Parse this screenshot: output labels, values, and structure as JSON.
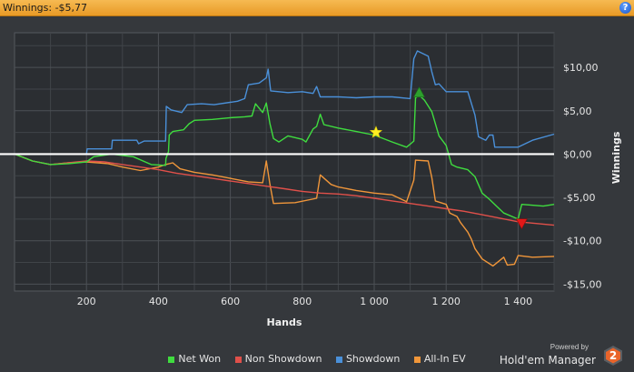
{
  "window": {
    "title": "Winnings: -$5,77",
    "help_label": "?"
  },
  "branding": {
    "powered_by": "Powered by",
    "product": "Hold'em Manager",
    "version_badge": "2"
  },
  "colors": {
    "net_won": "#3fdc3f",
    "non_showdown": "#e0504a",
    "showdown": "#4a90d9",
    "all_in_ev": "#f0963a",
    "zero_line": "#ffffff"
  },
  "chart_data": {
    "type": "line",
    "title": "",
    "xlabel": "Hands",
    "ylabel": "Winnings",
    "xlim": [
      0,
      1500
    ],
    "ylim": [
      -15.8,
      14
    ],
    "x_ticks": [
      200,
      400,
      600,
      800,
      1000,
      1200,
      1400
    ],
    "x_tick_labels": [
      "200",
      "400",
      "600",
      "800",
      "1 000",
      "1 200",
      "1 400"
    ],
    "y_ticks": [
      10,
      5,
      0,
      -5,
      -10,
      -15
    ],
    "y_tick_labels": [
      "$10,00",
      "$5,00",
      "$0,00",
      "-$5,00",
      "-$10,00",
      "-$15,00"
    ],
    "y_axis_side": "right",
    "grid": true,
    "legend_position": "bottom",
    "series": [
      {
        "name": "Net Won",
        "color": "#3fdc3f",
        "points": [
          [
            0,
            0
          ],
          [
            50,
            -0.8
          ],
          [
            100,
            -1.2
          ],
          [
            150,
            -1.1
          ],
          [
            200,
            -0.9
          ],
          [
            220,
            -0.3
          ],
          [
            270,
            0
          ],
          [
            330,
            -0.3
          ],
          [
            380,
            -1.2
          ],
          [
            420,
            -1.3
          ],
          [
            421,
            -0.5
          ],
          [
            428,
            0.3
          ],
          [
            430,
            2.2
          ],
          [
            440,
            2.6
          ],
          [
            470,
            2.8
          ],
          [
            485,
            3.5
          ],
          [
            500,
            3.9
          ],
          [
            550,
            4
          ],
          [
            600,
            4.2
          ],
          [
            640,
            4.3
          ],
          [
            660,
            4.4
          ],
          [
            670,
            5.8
          ],
          [
            690,
            4.8
          ],
          [
            700,
            5.9
          ],
          [
            710,
            3.5
          ],
          [
            720,
            1.8
          ],
          [
            735,
            1.4
          ],
          [
            760,
            2.1
          ],
          [
            800,
            1.7
          ],
          [
            810,
            1.4
          ],
          [
            830,
            2.9
          ],
          [
            840,
            3.2
          ],
          [
            850,
            4.6
          ],
          [
            860,
            3.4
          ],
          [
            900,
            3
          ],
          [
            950,
            2.6
          ],
          [
            1000,
            2.2
          ],
          [
            1050,
            1.4
          ],
          [
            1090,
            0.8
          ],
          [
            1110,
            1.5
          ],
          [
            1115,
            6.5
          ],
          [
            1125,
            6.8
          ],
          [
            1140,
            6.2
          ],
          [
            1160,
            4.9
          ],
          [
            1180,
            2.1
          ],
          [
            1200,
            1
          ],
          [
            1215,
            -1.2
          ],
          [
            1230,
            -1.5
          ],
          [
            1260,
            -1.8
          ],
          [
            1280,
            -2.6
          ],
          [
            1300,
            -4.5
          ],
          [
            1320,
            -5.2
          ],
          [
            1340,
            -6
          ],
          [
            1360,
            -6.8
          ],
          [
            1400,
            -7.5
          ],
          [
            1410,
            -5.8
          ],
          [
            1470,
            -6
          ],
          [
            1500,
            -5.8
          ]
        ]
      },
      {
        "name": "Non Showdown",
        "color": "#e0504a",
        "points": [
          [
            0,
            0
          ],
          [
            50,
            -0.8
          ],
          [
            100,
            -1.2
          ],
          [
            150,
            -1
          ],
          [
            200,
            -0.8
          ],
          [
            250,
            -0.9
          ],
          [
            300,
            -1.2
          ],
          [
            350,
            -1.5
          ],
          [
            400,
            -1.8
          ],
          [
            450,
            -2.2
          ],
          [
            500,
            -2.5
          ],
          [
            550,
            -2.8
          ],
          [
            600,
            -3.1
          ],
          [
            650,
            -3.4
          ],
          [
            700,
            -3.7
          ],
          [
            750,
            -4
          ],
          [
            800,
            -4.3
          ],
          [
            850,
            -4.5
          ],
          [
            900,
            -4.6
          ],
          [
            950,
            -4.8
          ],
          [
            1000,
            -5.1
          ],
          [
            1050,
            -5.4
          ],
          [
            1100,
            -5.7
          ],
          [
            1150,
            -6
          ],
          [
            1200,
            -6.3
          ],
          [
            1250,
            -6.6
          ],
          [
            1300,
            -7
          ],
          [
            1350,
            -7.4
          ],
          [
            1400,
            -7.8
          ],
          [
            1450,
            -8
          ],
          [
            1500,
            -8.2
          ]
        ]
      },
      {
        "name": "Showdown",
        "color": "#4a90d9",
        "points": [
          [
            0,
            0
          ],
          [
            200,
            0
          ],
          [
            202,
            0.6
          ],
          [
            270,
            0.6
          ],
          [
            272,
            1.6
          ],
          [
            340,
            1.6
          ],
          [
            345,
            1.2
          ],
          [
            360,
            1.5
          ],
          [
            420,
            1.5
          ],
          [
            422,
            5.5
          ],
          [
            435,
            5.1
          ],
          [
            465,
            4.8
          ],
          [
            480,
            5.7
          ],
          [
            520,
            5.8
          ],
          [
            555,
            5.7
          ],
          [
            620,
            6.1
          ],
          [
            640,
            6.4
          ],
          [
            650,
            8
          ],
          [
            680,
            8.2
          ],
          [
            700,
            8.8
          ],
          [
            705,
            9.8
          ],
          [
            712,
            7.3
          ],
          [
            760,
            7.1
          ],
          [
            800,
            7.2
          ],
          [
            830,
            7
          ],
          [
            840,
            7.8
          ],
          [
            850,
            6.6
          ],
          [
            900,
            6.6
          ],
          [
            950,
            6.5
          ],
          [
            1000,
            6.6
          ],
          [
            1050,
            6.6
          ],
          [
            1100,
            6.4
          ],
          [
            1110,
            11
          ],
          [
            1120,
            11.9
          ],
          [
            1150,
            11.3
          ],
          [
            1160,
            9.5
          ],
          [
            1170,
            8
          ],
          [
            1180,
            8.1
          ],
          [
            1200,
            7.2
          ],
          [
            1260,
            7.2
          ],
          [
            1280,
            4.5
          ],
          [
            1290,
            2
          ],
          [
            1310,
            1.6
          ],
          [
            1320,
            2.2
          ],
          [
            1330,
            2.2
          ],
          [
            1335,
            0.8
          ],
          [
            1350,
            0.8
          ],
          [
            1400,
            0.8
          ],
          [
            1440,
            1.6
          ],
          [
            1500,
            2.3
          ]
        ]
      },
      {
        "name": "All-In EV",
        "color": "#f0963a",
        "points": [
          [
            0,
            0
          ],
          [
            50,
            -0.8
          ],
          [
            100,
            -1.2
          ],
          [
            150,
            -1
          ],
          [
            200,
            -0.9
          ],
          [
            260,
            -1.1
          ],
          [
            300,
            -1.5
          ],
          [
            350,
            -1.9
          ],
          [
            400,
            -1.5
          ],
          [
            420,
            -1.2
          ],
          [
            440,
            -1
          ],
          [
            460,
            -1.7
          ],
          [
            500,
            -2.1
          ],
          [
            550,
            -2.4
          ],
          [
            600,
            -2.8
          ],
          [
            650,
            -3.2
          ],
          [
            690,
            -3.3
          ],
          [
            700,
            -0.8
          ],
          [
            710,
            -3.5
          ],
          [
            720,
            -5.7
          ],
          [
            780,
            -5.6
          ],
          [
            840,
            -5.1
          ],
          [
            850,
            -2.4
          ],
          [
            880,
            -3.5
          ],
          [
            900,
            -3.8
          ],
          [
            950,
            -4.2
          ],
          [
            1000,
            -4.5
          ],
          [
            1050,
            -4.7
          ],
          [
            1090,
            -5.5
          ],
          [
            1110,
            -3
          ],
          [
            1115,
            -0.7
          ],
          [
            1150,
            -0.8
          ],
          [
            1160,
            -2.7
          ],
          [
            1170,
            -5.4
          ],
          [
            1200,
            -5.8
          ],
          [
            1210,
            -6.8
          ],
          [
            1230,
            -7.2
          ],
          [
            1240,
            -7.9
          ],
          [
            1260,
            -9
          ],
          [
            1270,
            -9.8
          ],
          [
            1280,
            -10.9
          ],
          [
            1300,
            -12.1
          ],
          [
            1330,
            -12.9
          ],
          [
            1360,
            -11.9
          ],
          [
            1370,
            -12.8
          ],
          [
            1390,
            -12.7
          ],
          [
            1400,
            -11.7
          ],
          [
            1440,
            -11.9
          ],
          [
            1500,
            -11.8
          ]
        ]
      }
    ],
    "markers": [
      {
        "type": "star",
        "x": 1005,
        "y": 2.5,
        "color": "#ffee22"
      },
      {
        "type": "triangle-up",
        "x": 1125,
        "y": 7,
        "color": "#2da02d"
      },
      {
        "type": "triangle-down",
        "x": 1410,
        "y": -8,
        "color": "#e21818"
      }
    ]
  },
  "legend_entries": [
    {
      "label": "Net Won",
      "color": "#3fdc3f"
    },
    {
      "label": "Non Showdown",
      "color": "#e0504a"
    },
    {
      "label": "Showdown",
      "color": "#4a90d9"
    },
    {
      "label": "All-In EV",
      "color": "#f0963a"
    }
  ]
}
